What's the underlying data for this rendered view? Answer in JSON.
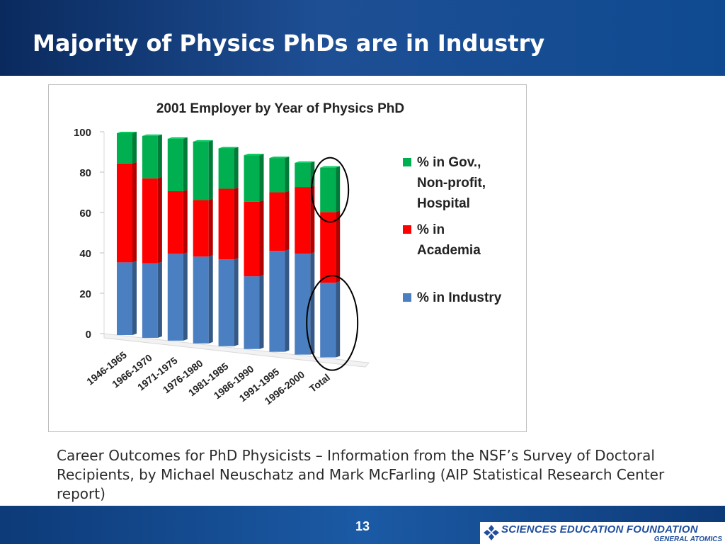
{
  "slide": {
    "title": "Majority of Physics PhDs are in Industry",
    "caption": "Career Outcomes for PhD Physicists – Information from the NSF’s Survey of Doctoral Recipients, by Michael Neuschatz and Mark McFarling (AIP Statistical Research Center report)",
    "page_number": "13",
    "logo_name": "SCIENCES EDUCATION FOUNDATION",
    "logo_sub": "GENERAL ATOMICS"
  },
  "chart_data": {
    "type": "bar",
    "stacked": true,
    "title": "2001 Employer by Year of Physics PhD",
    "xlabel": "",
    "ylabel": "",
    "ylim": [
      0,
      100
    ],
    "yticks": [
      0,
      20,
      40,
      60,
      80,
      100
    ],
    "categories": [
      "1946-1965",
      "1966-1970",
      "1971-1975",
      "1976-1980",
      "1981-1985",
      "1986-1990",
      "1991-1995",
      "1996-2000",
      "Total"
    ],
    "series": [
      {
        "name": "% in Industry",
        "color": "#4a7fc1",
        "values": [
          36,
          37,
          43,
          43,
          43,
          36,
          50,
          50,
          37
        ]
      },
      {
        "name": "% in Academia",
        "color": "#ff0000",
        "values": [
          49,
          42,
          31,
          28,
          35,
          37,
          29,
          33,
          35
        ]
      },
      {
        "name": "% in Gov., Non-profit, Hospital",
        "color": "#00b050",
        "values": [
          15,
          21,
          26,
          29,
          20,
          23,
          17,
          12,
          22
        ]
      }
    ],
    "legend": {
      "position": "right",
      "entries": [
        {
          "lines": [
            "% in Gov.,",
            "Non-profit,",
            "Hospital"
          ],
          "color": "#00b050"
        },
        {
          "lines": [
            "% in",
            "Academia"
          ],
          "color": "#ff0000"
        },
        {
          "lines": [
            "% in Industry"
          ],
          "color": "#4a7fc1"
        }
      ]
    },
    "annotations": [
      "circle around Total (Gov. segment)",
      "circle around Total (Industry segment)"
    ]
  }
}
